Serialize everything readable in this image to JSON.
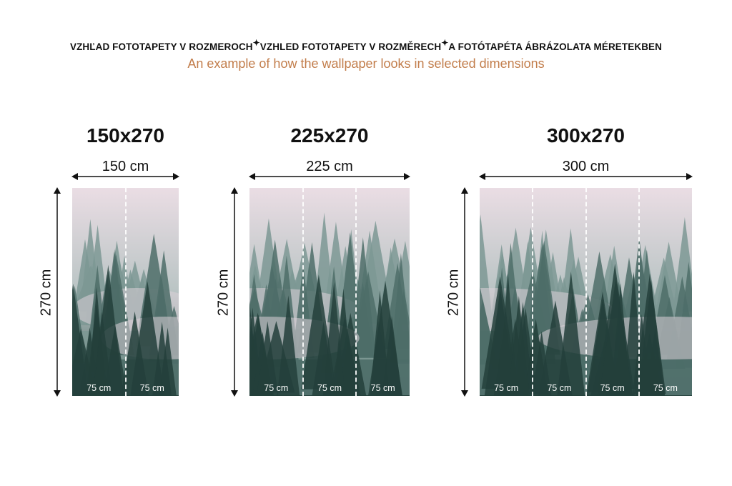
{
  "header": {
    "languages": [
      "VZHĽAD FOTOTAPETY V ROZMEROCH",
      "VZHLED FOTOTAPETY V ROZMĚRECH",
      "A FOTÓTAPÉTA ÁBRÁZOLATA MÉRETEKBEN"
    ],
    "separator_icon": "sparkle-icon",
    "subtitle": "An example of how the wallpaper looks in selected dimensions"
  },
  "colors": {
    "subtitle": "#c27d4b",
    "sky": "#e9dde3",
    "forest": "#2f4f4a"
  },
  "panels": [
    {
      "title": "150x270",
      "width_label": "150 cm",
      "height_label": "270 cm",
      "segments": [
        "75 cm",
        "75 cm"
      ]
    },
    {
      "title": "225x270",
      "width_label": "225 cm",
      "height_label": "270 cm",
      "segments": [
        "75 cm",
        "75 cm",
        "75 cm"
      ]
    },
    {
      "title": "300x270",
      "width_label": "300 cm",
      "height_label": "270 cm",
      "segments": [
        "75 cm",
        "75 cm",
        "75 cm",
        "75 cm"
      ]
    }
  ]
}
